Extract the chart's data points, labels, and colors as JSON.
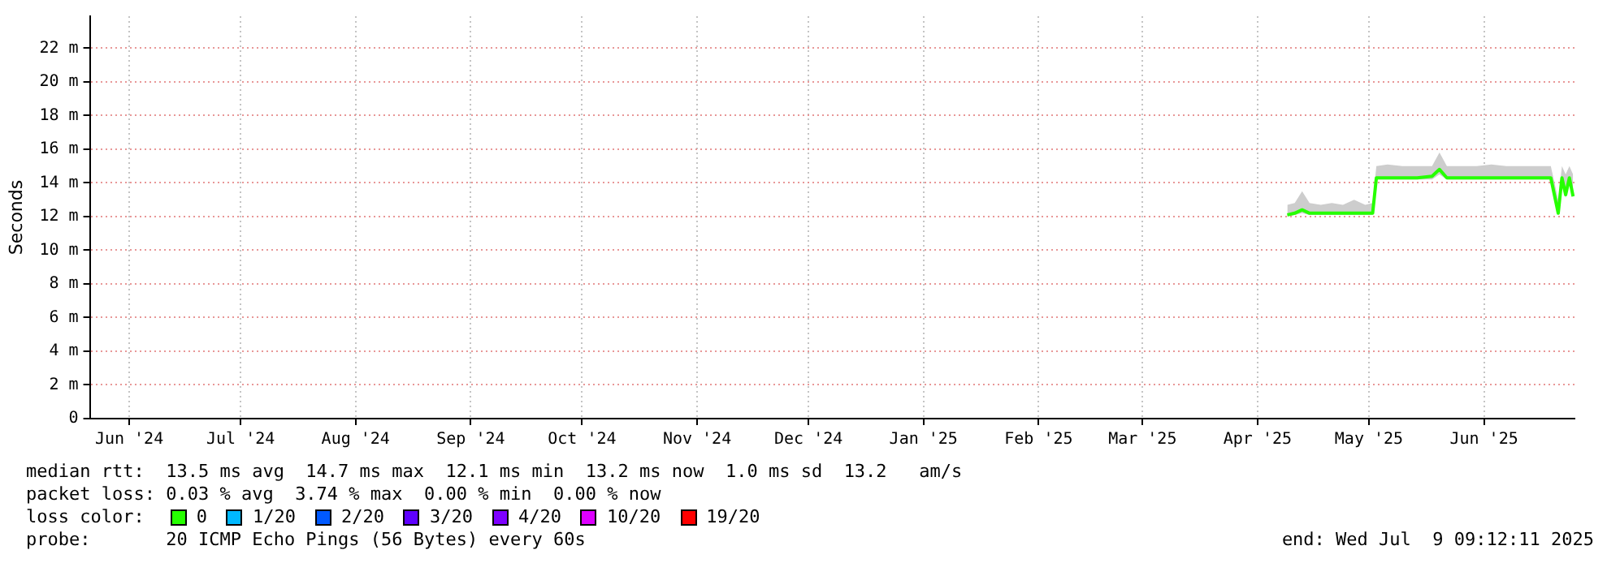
{
  "chart_data": {
    "type": "line",
    "ylabel": "Seconds",
    "legend_title": "loss color:",
    "legend": "bottom",
    "grid": true,
    "marker": "none",
    "line_style": "solid",
    "xlim": [
      "2024-06-04T09:12",
      "2025-07-09T09:12"
    ],
    "xticks": [
      {
        "value": "2024-06-15",
        "label": "Jun '24"
      },
      {
        "value": "2024-07-15",
        "label": "Jul '24"
      },
      {
        "value": "2024-08-15",
        "label": "Aug '24"
      },
      {
        "value": "2024-09-15",
        "label": "Sep '24"
      },
      {
        "value": "2024-10-15",
        "label": "Oct '24"
      },
      {
        "value": "2024-11-15",
        "label": "Nov '24"
      },
      {
        "value": "2024-12-15",
        "label": "Dec '24"
      },
      {
        "value": "2025-01-15",
        "label": "Jan '25"
      },
      {
        "value": "2025-02-15",
        "label": "Feb '25"
      },
      {
        "value": "2025-03-15",
        "label": "Mar '25"
      },
      {
        "value": "2025-04-15",
        "label": "Apr '25"
      },
      {
        "value": "2025-05-15",
        "label": "May '25"
      },
      {
        "value": "2025-06-15",
        "label": "Jun '25"
      }
    ],
    "ylim": [
      0,
      23.9
    ],
    "yticks": [
      0,
      {
        "value": 2,
        "label": "2 m"
      },
      {
        "value": 4,
        "label": "4 m"
      },
      {
        "value": 6,
        "label": "6 m"
      },
      {
        "value": 8,
        "label": "8 m"
      },
      {
        "value": 10,
        "label": "10 m"
      },
      {
        "value": 12,
        "label": "12 m"
      },
      {
        "value": 14,
        "label": "14 m"
      },
      {
        "value": 16,
        "label": "16 m"
      },
      {
        "value": 18,
        "label": "18 m"
      },
      {
        "value": 20,
        "label": "20 m"
      },
      {
        "value": 22,
        "label": "22 m"
      }
    ],
    "series": [
      {
        "name": "0",
        "color": "#26ff00",
        "x": [
          "2025-04-23",
          "2025-04-25",
          "2025-04-27",
          "2025-04-29",
          "2025-05-02",
          "2025-05-05",
          "2025-05-08",
          "2025-05-11",
          "2025-05-14",
          "2025-05-16",
          "2025-05-17",
          "2025-05-20",
          "2025-05-24",
          "2025-05-28",
          "2025-06-01",
          "2025-06-03",
          "2025-06-05",
          "2025-06-09",
          "2025-06-13",
          "2025-06-17",
          "2025-06-21",
          "2025-06-25",
          "2025-06-29",
          "2025-07-03",
          "2025-07-05",
          "2025-07-06",
          "2025-07-07",
          "2025-07-08",
          "2025-07-09"
        ],
        "values": [
          12.1,
          12.2,
          12.4,
          12.2,
          12.2,
          12.2,
          12.2,
          12.2,
          12.2,
          12.2,
          14.3,
          14.3,
          14.3,
          14.3,
          14.4,
          14.8,
          14.3,
          14.3,
          14.3,
          14.3,
          14.3,
          14.3,
          14.3,
          14.3,
          12.2,
          14.3,
          13.3,
          14.3,
          13.2
        ],
        "lower": [
          12.0,
          12.1,
          12.2,
          12.1,
          12.1,
          12.1,
          12.1,
          12.1,
          12.1,
          12.1,
          14.2,
          14.2,
          14.2,
          14.2,
          14.2,
          14.5,
          14.2,
          14.2,
          14.2,
          14.2,
          14.2,
          14.2,
          14.2,
          14.2,
          12.1,
          14.2,
          13.1,
          14.2,
          13.1
        ],
        "upper": [
          12.7,
          12.8,
          13.5,
          12.8,
          12.7,
          12.8,
          12.7,
          13.0,
          12.7,
          12.8,
          15.0,
          15.1,
          15.0,
          15.0,
          15.0,
          15.8,
          15.0,
          15.0,
          15.0,
          15.1,
          15.0,
          15.0,
          15.0,
          15.0,
          13.0,
          15.0,
          14.5,
          15.0,
          14.5
        ]
      },
      {
        "name": "1/20",
        "color": "#00b8ff"
      },
      {
        "name": "2/20",
        "color": "#0059ff"
      },
      {
        "name": "3/20",
        "color": "#5e00ff"
      },
      {
        "name": "4/20",
        "color": "#7e00ff"
      },
      {
        "name": "10/20",
        "color": "#dd00ff"
      },
      {
        "name": "19/20",
        "color": "#ff0000"
      }
    ],
    "annotations": [
      "median rtt:  13.5 ms avg  14.7 ms max  12.1 ms min  13.2 ms now  1.0 ms sd  13.2   am/s",
      "packet loss: 0.03 % avg  3.74 % max  0.00 % min  0.00 % now",
      "probe:       20 ICMP Echo Pings (56 Bytes) every 60s",
      "end: Wed Jul  9 09:12:11 2025"
    ]
  }
}
